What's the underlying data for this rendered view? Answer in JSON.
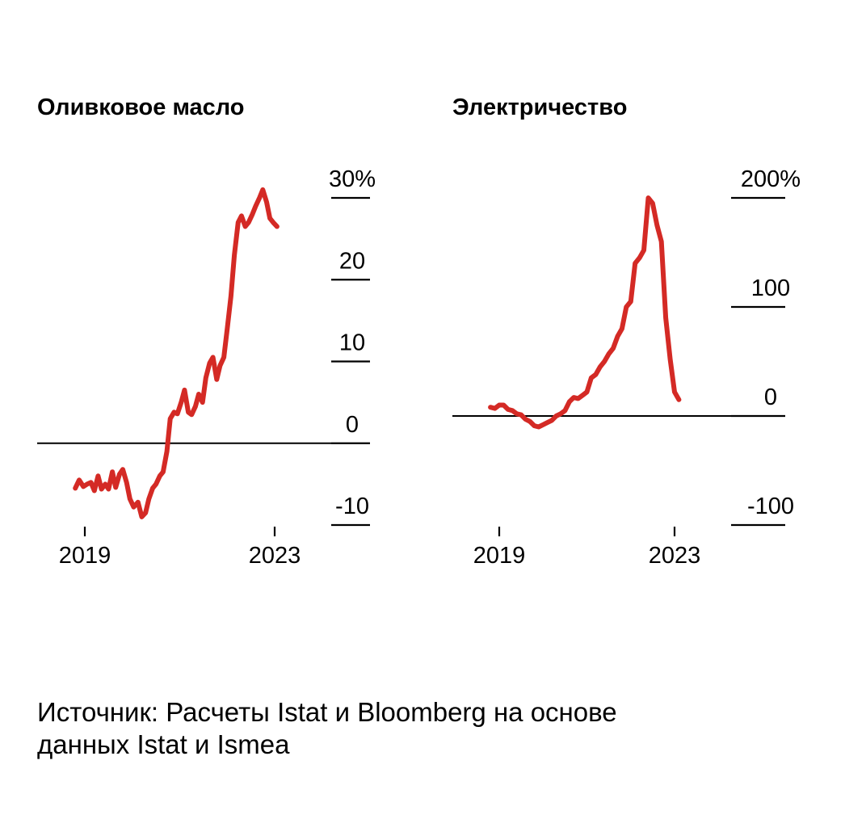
{
  "colors": {
    "series": "#d42a25",
    "axis": "#000000",
    "background": "#ffffff"
  },
  "chart_data": [
    {
      "type": "line",
      "title": "Оливковое масло",
      "ylabel": "%",
      "ylim": [
        -10,
        30
      ],
      "y_ticks": [
        {
          "value": 30,
          "label": "30%"
        },
        {
          "value": 20,
          "label": "20"
        },
        {
          "value": 10,
          "label": "10"
        },
        {
          "value": 0,
          "label": "0"
        },
        {
          "value": -10,
          "label": "-10"
        }
      ],
      "x_ticks": [
        {
          "value": 2019,
          "label": "2019"
        },
        {
          "value": 2023,
          "label": "2023"
        }
      ],
      "series": [
        {
          "name": "Оливковое масло",
          "x": [
            2018.8,
            2018.88,
            2018.97,
            2019.05,
            2019.13,
            2019.2,
            2019.28,
            2019.35,
            2019.43,
            2019.5,
            2019.58,
            2019.65,
            2019.73,
            2019.8,
            2019.88,
            2019.95,
            2020.03,
            2020.12,
            2020.2,
            2020.28,
            2020.35,
            2020.43,
            2020.5,
            2020.58,
            2020.65,
            2020.73,
            2020.8,
            2020.88,
            2020.95,
            2021.03,
            2021.1,
            2021.18,
            2021.25,
            2021.33,
            2021.4,
            2021.48,
            2021.55,
            2021.63,
            2021.7,
            2021.78,
            2021.85,
            2021.93,
            2022.0,
            2022.08,
            2022.15,
            2022.23,
            2022.3,
            2022.38,
            2022.45,
            2022.53,
            2022.6,
            2022.68,
            2022.75,
            2022.83,
            2022.9,
            2022.97,
            2023.05
          ],
          "values": [
            -5.5,
            -4.5,
            -5.3,
            -5.0,
            -4.8,
            -5.8,
            -4.0,
            -5.6,
            -5.0,
            -5.6,
            -3.5,
            -5.4,
            -3.8,
            -3.2,
            -4.8,
            -6.8,
            -7.8,
            -7.2,
            -9.0,
            -8.5,
            -6.8,
            -5.5,
            -5.0,
            -4.0,
            -3.5,
            -1.0,
            3.0,
            3.8,
            3.6,
            5.0,
            6.5,
            3.8,
            3.5,
            4.5,
            6.0,
            5.0,
            8.0,
            9.8,
            10.5,
            7.8,
            9.5,
            10.5,
            14.0,
            18.0,
            23.0,
            27.0,
            27.8,
            26.5,
            27.0,
            28.0,
            29.0,
            30.0,
            31.0,
            29.5,
            27.5,
            27.0,
            26.5
          ]
        }
      ]
    },
    {
      "type": "line",
      "title": "Электричество",
      "ylabel": "%",
      "ylim": [
        -100,
        200
      ],
      "y_ticks": [
        {
          "value": 200,
          "label": "200%"
        },
        {
          "value": 100,
          "label": "100"
        },
        {
          "value": 0,
          "label": "0"
        },
        {
          "value": -100,
          "label": "-100"
        }
      ],
      "x_ticks": [
        {
          "value": 2019,
          "label": "2019"
        },
        {
          "value": 2023,
          "label": "2023"
        }
      ],
      "series": [
        {
          "name": "Электричество",
          "x": [
            2018.8,
            2018.9,
            2019.0,
            2019.1,
            2019.2,
            2019.3,
            2019.4,
            2019.5,
            2019.6,
            2019.7,
            2019.8,
            2019.9,
            2020.0,
            2020.1,
            2020.2,
            2020.3,
            2020.4,
            2020.5,
            2020.6,
            2020.7,
            2020.8,
            2020.9,
            2021.0,
            2021.1,
            2021.2,
            2021.3,
            2021.4,
            2021.5,
            2021.6,
            2021.7,
            2021.8,
            2021.9,
            2022.0,
            2022.1,
            2022.2,
            2022.3,
            2022.4,
            2022.5,
            2022.6,
            2022.7,
            2022.8,
            2022.9,
            2023.0,
            2023.1
          ],
          "values": [
            8,
            7,
            10,
            10,
            6,
            5,
            2,
            1,
            -3,
            -5,
            -9,
            -10,
            -8,
            -6,
            -4,
            0,
            2,
            5,
            13,
            17,
            16,
            19,
            22,
            35,
            38,
            45,
            50,
            57,
            62,
            73,
            80,
            100,
            105,
            140,
            145,
            152,
            200,
            195,
            175,
            160,
            90,
            52,
            22,
            15
          ]
        }
      ]
    }
  ],
  "source": {
    "line1": "Источник: Расчеты Istat и Bloomberg на основе",
    "line2": "данных Istat и Ismea"
  }
}
